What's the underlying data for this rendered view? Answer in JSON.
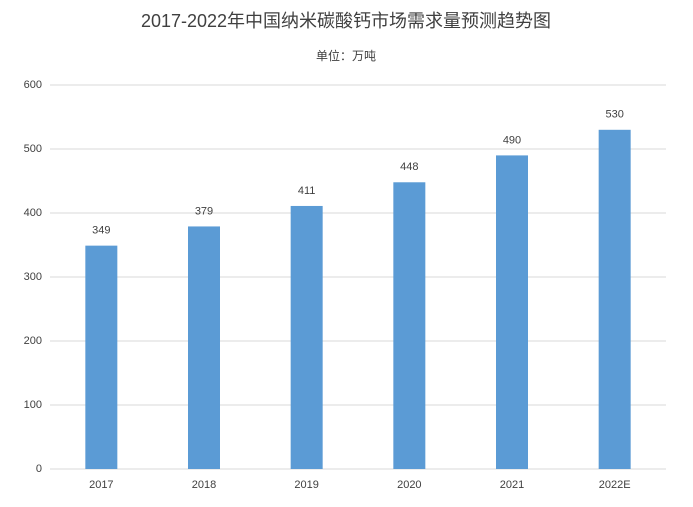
{
  "chart_data": {
    "type": "bar",
    "title": "2017-2022年中国纳米碳酸钙市场需求量预测趋势图",
    "subtitle": "单位：万吨",
    "categories": [
      "2017",
      "2018",
      "2019",
      "2020",
      "2021",
      "2022E"
    ],
    "values": [
      349,
      379,
      411,
      448,
      490,
      530
    ],
    "color": "#5b9bd5",
    "ylim": [
      0,
      600
    ],
    "yticks": [
      0,
      100,
      200,
      300,
      400,
      500,
      600
    ],
    "grid": true
  }
}
